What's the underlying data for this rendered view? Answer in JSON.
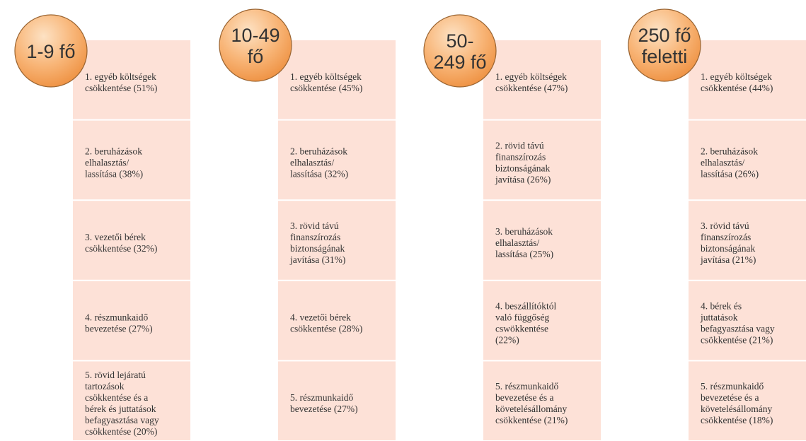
{
  "columns": [
    {
      "header": [
        "1-9 fő"
      ],
      "items": [
        [
          "1. egyéb költségek",
          "csökkentése (51%)"
        ],
        [
          "2. beruházások",
          "elhalasztás/",
          "lassítása (38%)"
        ],
        [
          "3. vezetői bérek",
          "csökkentése (32%)"
        ],
        [
          "4. részmunkaidő",
          "bevezetése (27%)"
        ],
        [
          "5. rövid lejáratú",
          "tartozások",
          "csökkentése és a",
          "bérek és juttatások",
          "befagyasztása vagy",
          "csökkentése (20%)"
        ]
      ]
    },
    {
      "header": [
        "10-49",
        "fő"
      ],
      "items": [
        [
          "1. egyéb költségek",
          "csökkentése (45%)"
        ],
        [
          "2. beruházások",
          "elhalasztás/",
          "lassítása (32%)"
        ],
        [
          "3. rövid távú",
          "finanszírozás",
          "biztonságának",
          "javítása (31%)"
        ],
        [
          "4. vezetői bérek",
          "csökkentése (28%)"
        ],
        [
          "5. részmunkaidő",
          "bevezetése (27%)"
        ]
      ]
    },
    {
      "header": [
        "50-",
        "249 fő"
      ],
      "items": [
        [
          "1. egyéb költségek",
          "csökkentése (47%)"
        ],
        [
          "2. rövid távú",
          "finanszírozás",
          "biztonságának",
          "javítása (26%)"
        ],
        [
          "3. beruházások",
          "elhalasztás/",
          "lassítása (25%)"
        ],
        [
          "4. beszállítóktól",
          "való függőség",
          "cswökkentése",
          "(22%)"
        ],
        [
          "5. részmunkaidő",
          "bevezetése és a",
          "követelésállomány",
          "csökkentése (21%)"
        ]
      ]
    },
    {
      "header": [
        "250 fő",
        "feletti"
      ],
      "items": [
        [
          "1. egyéb költségek",
          "csökkentése (44%)"
        ],
        [
          "2. beruházások",
          "elhalasztás/",
          "lassítása (26%)"
        ],
        [
          "3. rövid távú",
          "finanszírozás",
          "biztonságának",
          "javítása (21%)"
        ],
        [
          "4. bérek és",
          "juttatások",
          "befagyasztása vagy",
          "csökkentése (21%)"
        ],
        [
          "5. részmunkaidő",
          "bevezetése és a",
          "követelésállomány",
          "csökkentése (18%)"
        ]
      ]
    }
  ]
}
